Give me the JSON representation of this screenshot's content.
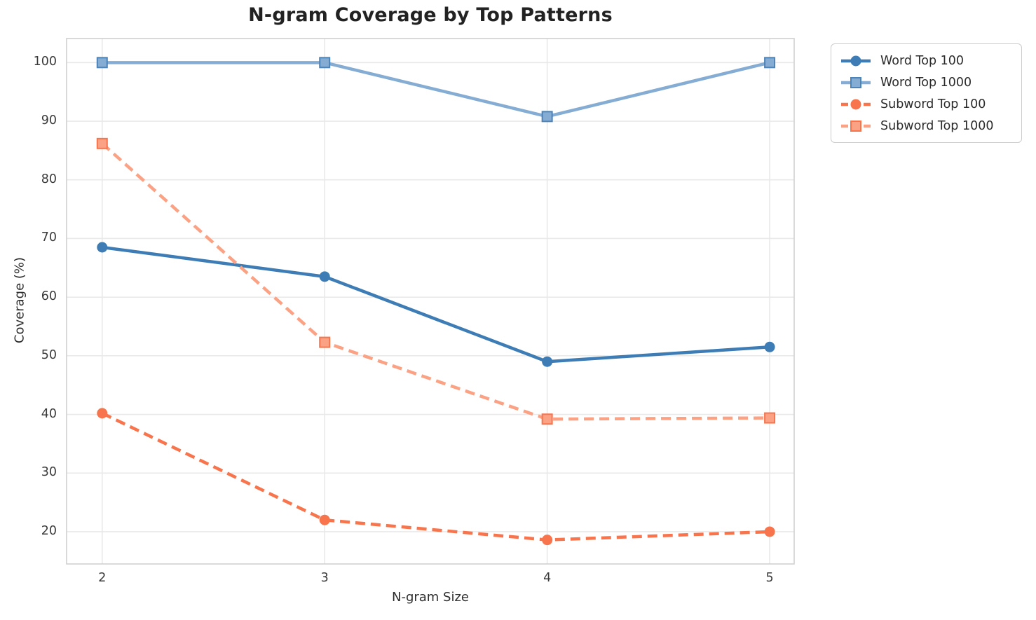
{
  "chart_data": {
    "type": "line",
    "title": "N-gram Coverage by Top Patterns",
    "xlabel": "N-gram Size",
    "ylabel": "Coverage (%)",
    "x": [
      2,
      3,
      4,
      5
    ],
    "xticks": [
      2,
      3,
      4,
      5
    ],
    "yticks": [
      20,
      30,
      40,
      50,
      60,
      70,
      80,
      90,
      100
    ],
    "xlim": [
      1.84,
      5.11
    ],
    "ylim": [
      14.5,
      104.1
    ],
    "grid": true,
    "legend_position": "upper right, outside plot",
    "series": [
      {
        "name": "Word Top 100",
        "values": [
          68.5,
          63.5,
          49.0,
          51.5
        ],
        "color": "#3D7CB4",
        "line_style": "solid",
        "marker": "circle"
      },
      {
        "name": "Word Top 1000",
        "values": [
          100.0,
          100.0,
          90.8,
          100.0
        ],
        "color": "#85ACD3",
        "line_style": "solid",
        "marker": "square",
        "marker_edge": "#4C83B8"
      },
      {
        "name": "Subword Top 100",
        "values": [
          40.2,
          22.0,
          18.6,
          20.0
        ],
        "color": "#F8744C",
        "line_style": "dashed",
        "marker": "circle"
      },
      {
        "name": "Subword Top 1000",
        "values": [
          86.2,
          52.3,
          39.2,
          39.4
        ],
        "color": "#FBA285",
        "line_style": "dashed",
        "marker": "square",
        "marker_edge": "#F8744C"
      }
    ],
    "colors": {
      "grid_line": "#E9E9E9",
      "plot_border": "#D0D0D0",
      "title_text": "#222222",
      "tick_text": "#3a3a3a",
      "axis_label_text": "#2e2e2e",
      "background": "#ffffff"
    }
  }
}
